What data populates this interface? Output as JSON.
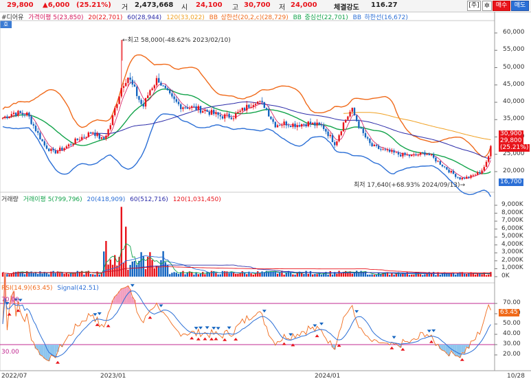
{
  "header": {
    "price": "29,800",
    "change": "▲6,000",
    "change_pct": "(25.21%)",
    "label_vol": "거",
    "volume": "2,473,668",
    "label_open": "시",
    "open": "24,100",
    "label_high": "고",
    "high": "30,700",
    "label_low": "저",
    "low": "24,000",
    "label_strength": "체결강도",
    "strength": "116.27",
    "btn_stock": "[주]",
    "btn_settings_icon": "gear-icon",
    "btn_buy": "매수",
    "btn_sell": "매도"
  },
  "price_panel": {
    "corner": "호",
    "legend": {
      "name": "#디어유",
      "ma5": "가격이평 5(23,850)",
      "ma20": "20(22,701)",
      "ma60": "60(28,944)",
      "ma120": "120(33,022)",
      "bb_upper": "BB_상한선(20,2,c)(28,729)",
      "bb_mid": "BB_중심선(22,701)",
      "bb_lower": "BB_하한선(16,672)"
    },
    "ann_high": "←최고 58,000(-48.62% 2023/02/10)",
    "ann_low": "최저 17,640(+68.93% 2024/09/13)→",
    "tag_upper": "30,900",
    "tag_price": "29,800",
    "tag_pct": "(25.21%)",
    "tag_lower": "16,700",
    "y_ticks": [
      "60,000",
      "55,000",
      "50,000",
      "45,000",
      "40,000",
      "35,000",
      "30,000",
      "25,000",
      "20,000"
    ]
  },
  "volume_panel": {
    "legend": {
      "name": "거래량",
      "ma5": "거래이평 5(799,796)",
      "ma20": "20(418,909)",
      "ma60": "60(512,716)",
      "ma120": "120(1,031,450)"
    },
    "y_ticks": [
      "9,000K",
      "8,000K",
      "7,000K",
      "6,000K",
      "5,000K",
      "4,000K",
      "3,000K",
      "2,000K",
      "1,000K",
      "0K"
    ]
  },
  "rsi_panel": {
    "legend": {
      "rsi": "RSI(14,9)(63.45)",
      "signal": "Signal(42.51)"
    },
    "level_high": "70.00",
    "level_low": "30.00",
    "tag_rsi": "63.45",
    "y_ticks": [
      "70.00",
      "60.00",
      "50.00",
      "40.00",
      "30.00",
      "20.00"
    ]
  },
  "x_axis": {
    "labels": [
      "2022/07",
      "2023/01",
      "2024/01",
      "10/28"
    ]
  },
  "colors": {
    "up": "#e8141b",
    "down": "#1565c0",
    "ma5": "#d4145a",
    "ma20": "#12a34a",
    "ma60": "#2a2aa8",
    "ma120": "#f0a020",
    "bb": "#2b6fd6",
    "bb_upper": "#f06a1a"
  }
}
